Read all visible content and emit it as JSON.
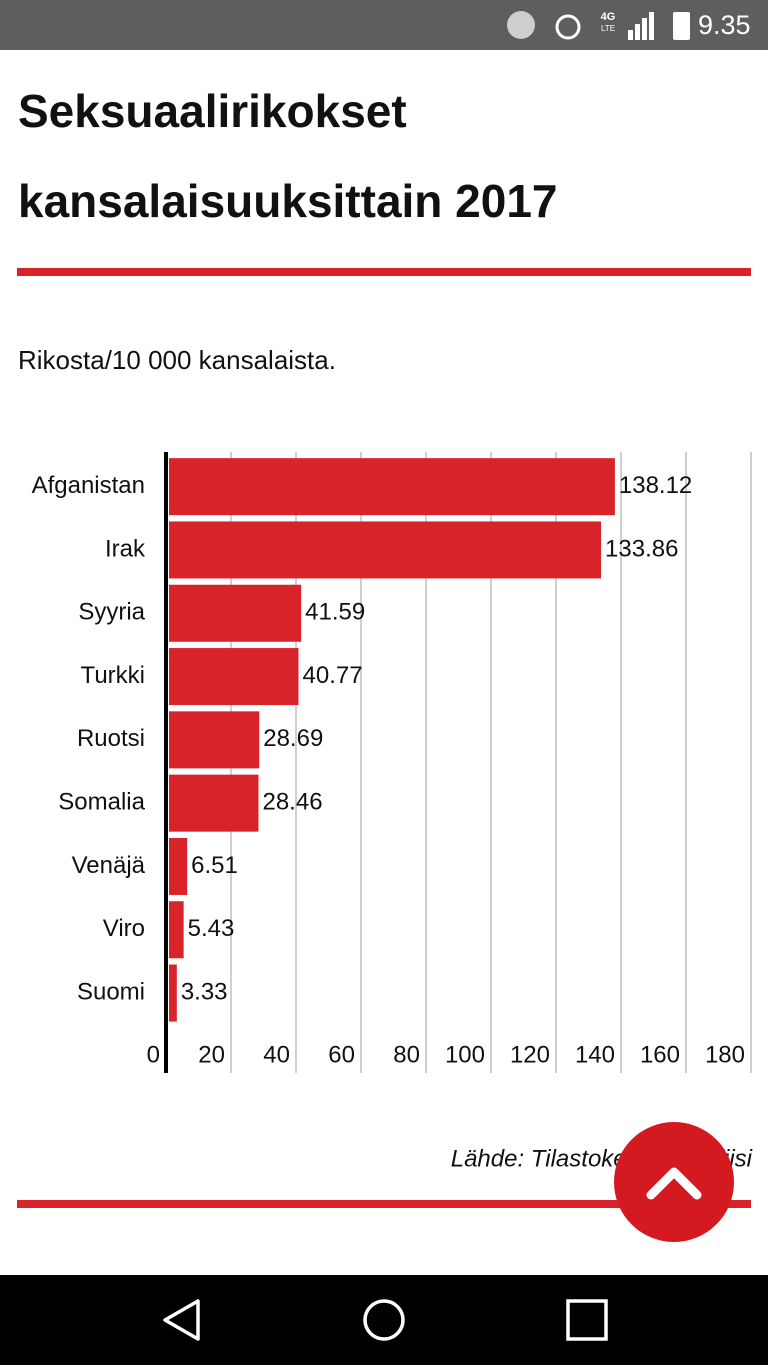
{
  "status_bar": {
    "network": "4G",
    "network_sub": "LTE",
    "time": "9.35"
  },
  "chart_data": {
    "type": "barh",
    "title_lines": [
      "Seksuaalirikokset",
      "kansalaisuuksittain 2017"
    ],
    "subtitle": "Rikosta/10 000 kansalaista.",
    "categories": [
      "Afganistan",
      "Irak",
      "Syyria",
      "Turkki",
      "Ruotsi",
      "Somalia",
      "Venäjä",
      "Viro",
      "Suomi"
    ],
    "values": [
      138.12,
      133.86,
      41.59,
      40.77,
      28.69,
      28.46,
      6.51,
      5.43,
      3.33
    ],
    "color": "#d9232b",
    "xlim": [
      0,
      180
    ],
    "xticks": [
      0,
      20,
      40,
      60,
      80,
      100,
      120,
      140,
      160,
      180
    ],
    "grid": true,
    "source": "Lähde: Tilastokeskus, Poliisi"
  }
}
